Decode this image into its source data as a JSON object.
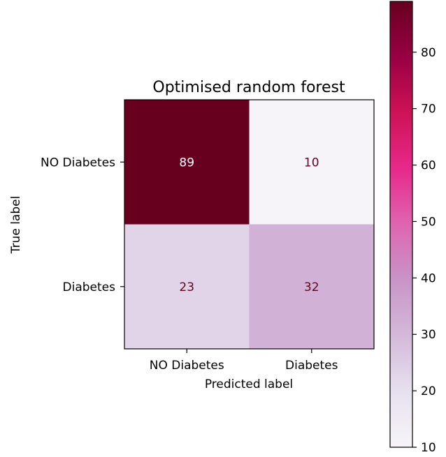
{
  "chart_data": {
    "type": "heatmap",
    "title": "Optimised random forest",
    "xlabel": "Predicted label",
    "ylabel": "True label",
    "x_categories": [
      "NO Diabetes",
      "Diabetes"
    ],
    "y_categories": [
      "NO Diabetes",
      "Diabetes"
    ],
    "matrix": [
      [
        89,
        10
      ],
      [
        23,
        32
      ]
    ],
    "colormap": "PuRd",
    "colorbar": {
      "vmin": 10,
      "vmax": 89,
      "ticks": [
        10,
        20,
        30,
        40,
        50,
        60,
        70,
        80
      ],
      "placement": "right"
    },
    "text_colors": {
      "dark_cell": "#ffffff",
      "light_cell": "#67001f"
    },
    "grid": false
  }
}
